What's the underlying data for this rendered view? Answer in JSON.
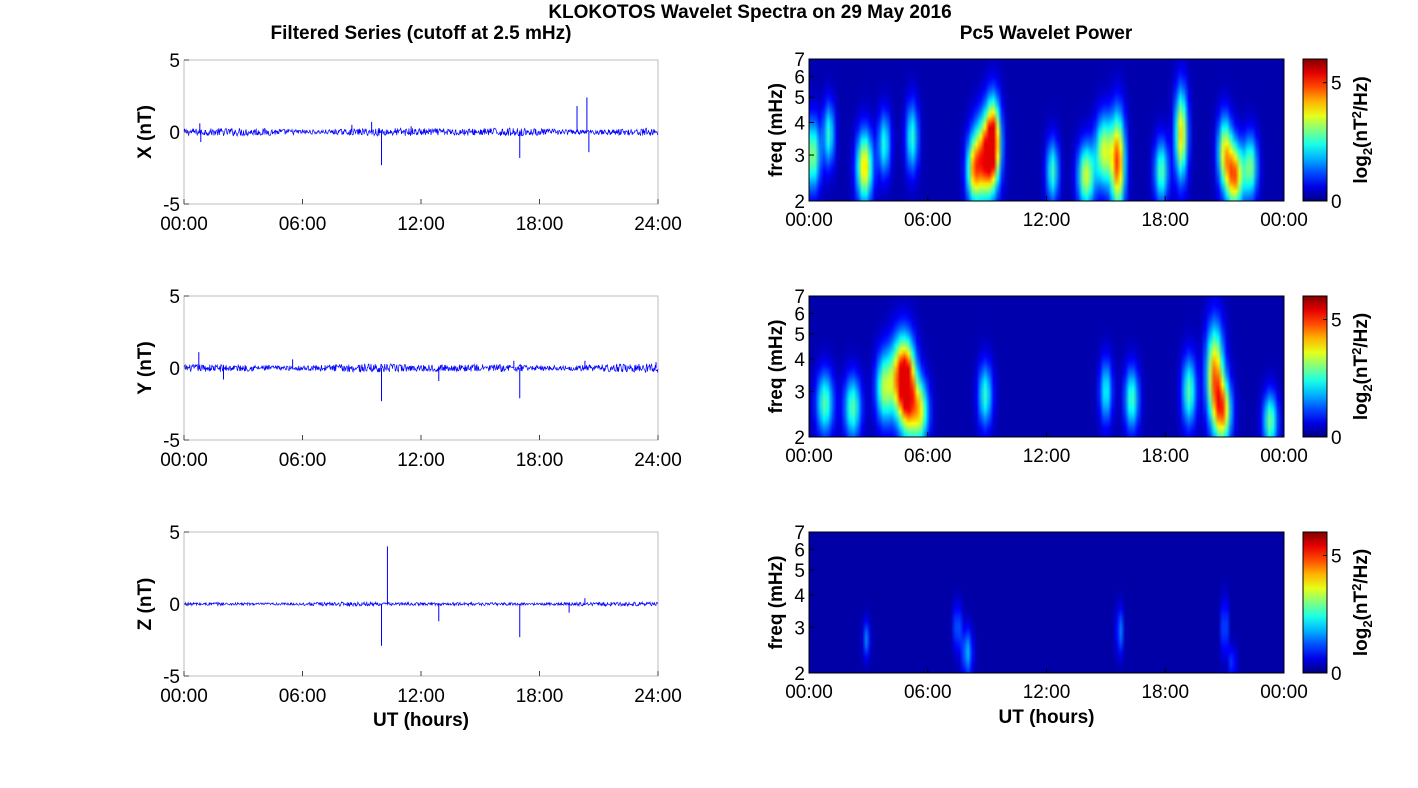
{
  "figure": {
    "title": "KLOKOTOS Wavelet Spectra on 29 May 2016",
    "left_column_title": "Filtered Series (cutoff at 2.5 mHz)",
    "right_column_title": "Pc5 Wavelet Power",
    "colormap": "jet"
  },
  "chart_data": [
    {
      "type": "line",
      "panel": "X",
      "ylabel": "X (nT)",
      "xlabel": "",
      "xlim": [
        0,
        24
      ],
      "ylim": [
        -5,
        5
      ],
      "x_ticks": [
        "00:00",
        "06:00",
        "12:00",
        "18:00",
        "24:00"
      ],
      "y_ticks": [
        "5",
        "0",
        "-5"
      ],
      "color": "#0000ff",
      "noise_amplitude": 0.15,
      "spikes": [
        {
          "x": 0.8,
          "y": 0.6
        },
        {
          "x": 0.85,
          "y": -0.7
        },
        {
          "x": 8.5,
          "y": 0.5
        },
        {
          "x": 9.5,
          "y": 0.7
        },
        {
          "x": 10.0,
          "y": -2.3
        },
        {
          "x": 11.5,
          "y": 0.4
        },
        {
          "x": 17.0,
          "y": -1.8
        },
        {
          "x": 19.9,
          "y": 1.8
        },
        {
          "x": 20.4,
          "y": 2.4
        },
        {
          "x": 20.5,
          "y": -1.4
        }
      ]
    },
    {
      "type": "line",
      "panel": "Y",
      "ylabel": "Y (nT)",
      "xlabel": "",
      "xlim": [
        0,
        24
      ],
      "ylim": [
        -5,
        5
      ],
      "x_ticks": [
        "00:00",
        "06:00",
        "12:00",
        "18:00",
        "24:00"
      ],
      "y_ticks": [
        "5",
        "0",
        "-5"
      ],
      "color": "#0000ff",
      "noise_amplitude": 0.15,
      "spikes": [
        {
          "x": 0.75,
          "y": 1.1
        },
        {
          "x": 2.0,
          "y": -0.8
        },
        {
          "x": 5.5,
          "y": 0.6
        },
        {
          "x": 10.0,
          "y": -2.3
        },
        {
          "x": 12.9,
          "y": -0.9
        },
        {
          "x": 16.7,
          "y": 0.5
        },
        {
          "x": 17.0,
          "y": -2.1
        },
        {
          "x": 20.3,
          "y": 0.5
        },
        {
          "x": 23.9,
          "y": 0.4
        }
      ]
    },
    {
      "type": "line",
      "panel": "Z",
      "ylabel": "Z (nT)",
      "xlabel": "UT (hours)",
      "xlim": [
        0,
        24
      ],
      "ylim": [
        -5,
        5
      ],
      "x_ticks": [
        "00:00",
        "06:00",
        "12:00",
        "18:00",
        "24:00"
      ],
      "y_ticks": [
        "5",
        "0",
        "-5"
      ],
      "color": "#0000ff",
      "noise_amplitude": 0.07,
      "spikes": [
        {
          "x": 10.0,
          "y": -2.9
        },
        {
          "x": 10.3,
          "y": 4.0
        },
        {
          "x": 12.9,
          "y": -1.2
        },
        {
          "x": 17.0,
          "y": -2.3
        },
        {
          "x": 20.3,
          "y": 0.4
        },
        {
          "x": 19.5,
          "y": -0.6
        }
      ]
    },
    {
      "type": "heatmap",
      "panel": "X",
      "ylabel": "freq (mHz)",
      "xlabel": "",
      "xlim": [
        0,
        24
      ],
      "ylim": [
        2,
        7
      ],
      "yscale": "log",
      "x_ticks": [
        "00:00",
        "06:00",
        "12:00",
        "18:00",
        "00:00"
      ],
      "y_ticks": [
        "2",
        "3",
        "4",
        "5",
        "6",
        "7"
      ],
      "colorbar": {
        "label": "log2(nT2/Hz)",
        "ticks": [
          "0",
          "5"
        ],
        "range": [
          0,
          6
        ]
      },
      "background_power": 0.3,
      "blobs": [
        {
          "t": 0.2,
          "f": 3.0,
          "dt": 0.25,
          "df": 0.22,
          "p": 3.2
        },
        {
          "t": 1.0,
          "f": 3.6,
          "dt": 0.2,
          "df": 0.2,
          "p": 2.5
        },
        {
          "t": 2.8,
          "f": 2.7,
          "dt": 0.28,
          "df": 0.22,
          "p": 4.2
        },
        {
          "t": 3.8,
          "f": 3.3,
          "dt": 0.22,
          "df": 0.2,
          "p": 2.4
        },
        {
          "t": 5.2,
          "f": 3.5,
          "dt": 0.22,
          "df": 0.22,
          "p": 2.5
        },
        {
          "t": 8.3,
          "f": 2.6,
          "dt": 0.25,
          "df": 0.2,
          "p": 3.2
        },
        {
          "t": 8.9,
          "f": 2.9,
          "dt": 0.4,
          "df": 0.25,
          "p": 5.2
        },
        {
          "t": 9.3,
          "f": 3.5,
          "dt": 0.25,
          "df": 0.25,
          "p": 4.6
        },
        {
          "t": 12.3,
          "f": 2.6,
          "dt": 0.22,
          "df": 0.2,
          "p": 2.6
        },
        {
          "t": 14.0,
          "f": 2.5,
          "dt": 0.3,
          "df": 0.2,
          "p": 3.6
        },
        {
          "t": 14.9,
          "f": 3.1,
          "dt": 0.3,
          "df": 0.22,
          "p": 3.6
        },
        {
          "t": 15.6,
          "f": 2.8,
          "dt": 0.25,
          "df": 0.3,
          "p": 5.0
        },
        {
          "t": 17.8,
          "f": 2.6,
          "dt": 0.25,
          "df": 0.2,
          "p": 2.8
        },
        {
          "t": 18.8,
          "f": 3.6,
          "dt": 0.22,
          "df": 0.28,
          "p": 4.2
        },
        {
          "t": 21.0,
          "f": 3.1,
          "dt": 0.25,
          "df": 0.22,
          "p": 3.6
        },
        {
          "t": 21.5,
          "f": 2.5,
          "dt": 0.3,
          "df": 0.2,
          "p": 4.8
        },
        {
          "t": 22.3,
          "f": 2.7,
          "dt": 0.25,
          "df": 0.2,
          "p": 3.0
        }
      ]
    },
    {
      "type": "heatmap",
      "panel": "Y",
      "ylabel": "freq (mHz)",
      "xlabel": "",
      "xlim": [
        0,
        24
      ],
      "ylim": [
        2,
        7
      ],
      "yscale": "log",
      "x_ticks": [
        "00:00",
        "06:00",
        "12:00",
        "18:00",
        "00:00"
      ],
      "y_ticks": [
        "2",
        "3",
        "4",
        "5",
        "6",
        "7"
      ],
      "colorbar": {
        "label": "log2(nT2/Hz)",
        "ticks": [
          "0",
          "5"
        ],
        "range": [
          0,
          6
        ]
      },
      "background_power": 0.3,
      "blobs": [
        {
          "t": 0.8,
          "f": 2.7,
          "dt": 0.3,
          "df": 0.2,
          "p": 2.8
        },
        {
          "t": 2.2,
          "f": 2.6,
          "dt": 0.3,
          "df": 0.2,
          "p": 2.8
        },
        {
          "t": 3.8,
          "f": 3.1,
          "dt": 0.3,
          "df": 0.22,
          "p": 3.2
        },
        {
          "t": 4.6,
          "f": 3.4,
          "dt": 0.35,
          "df": 0.25,
          "p": 4.4
        },
        {
          "t": 5.0,
          "f": 3.0,
          "dt": 0.3,
          "df": 0.28,
          "p": 4.8
        },
        {
          "t": 5.6,
          "f": 2.5,
          "dt": 0.3,
          "df": 0.2,
          "p": 3.6
        },
        {
          "t": 8.9,
          "f": 2.9,
          "dt": 0.25,
          "df": 0.2,
          "p": 2.5
        },
        {
          "t": 15.0,
          "f": 3.0,
          "dt": 0.22,
          "df": 0.2,
          "p": 2.3
        },
        {
          "t": 16.3,
          "f": 2.8,
          "dt": 0.25,
          "df": 0.2,
          "p": 2.7
        },
        {
          "t": 19.2,
          "f": 3.0,
          "dt": 0.25,
          "df": 0.22,
          "p": 2.8
        },
        {
          "t": 20.5,
          "f": 3.5,
          "dt": 0.3,
          "df": 0.3,
          "p": 4.6
        },
        {
          "t": 20.9,
          "f": 2.5,
          "dt": 0.3,
          "df": 0.2,
          "p": 4.2
        },
        {
          "t": 23.3,
          "f": 2.3,
          "dt": 0.25,
          "df": 0.18,
          "p": 3.0
        }
      ]
    },
    {
      "type": "heatmap",
      "panel": "Z",
      "ylabel": "freq (mHz)",
      "xlabel": "UT (hours)",
      "xlim": [
        0,
        24
      ],
      "ylim": [
        2,
        7
      ],
      "yscale": "log",
      "x_ticks": [
        "00:00",
        "06:00",
        "12:00",
        "18:00",
        "00:00"
      ],
      "y_ticks": [
        "2",
        "3",
        "4",
        "5",
        "6",
        "7"
      ],
      "colorbar": {
        "label": "log2(nT2/Hz)",
        "ticks": [
          "0",
          "5"
        ],
        "range": [
          0,
          6
        ]
      },
      "background_power": 0.25,
      "blobs": [
        {
          "t": 2.9,
          "f": 2.7,
          "dt": 0.12,
          "df": 0.12,
          "p": 1.4
        },
        {
          "t": 8.0,
          "f": 2.4,
          "dt": 0.18,
          "df": 0.15,
          "p": 1.8
        },
        {
          "t": 7.5,
          "f": 3.0,
          "dt": 0.15,
          "df": 0.15,
          "p": 1.3
        },
        {
          "t": 15.7,
          "f": 2.9,
          "dt": 0.12,
          "df": 0.15,
          "p": 1.5
        },
        {
          "t": 21.0,
          "f": 3.0,
          "dt": 0.12,
          "df": 0.18,
          "p": 1.4
        },
        {
          "t": 21.4,
          "f": 2.2,
          "dt": 0.12,
          "df": 0.1,
          "p": 1.1
        }
      ]
    }
  ]
}
